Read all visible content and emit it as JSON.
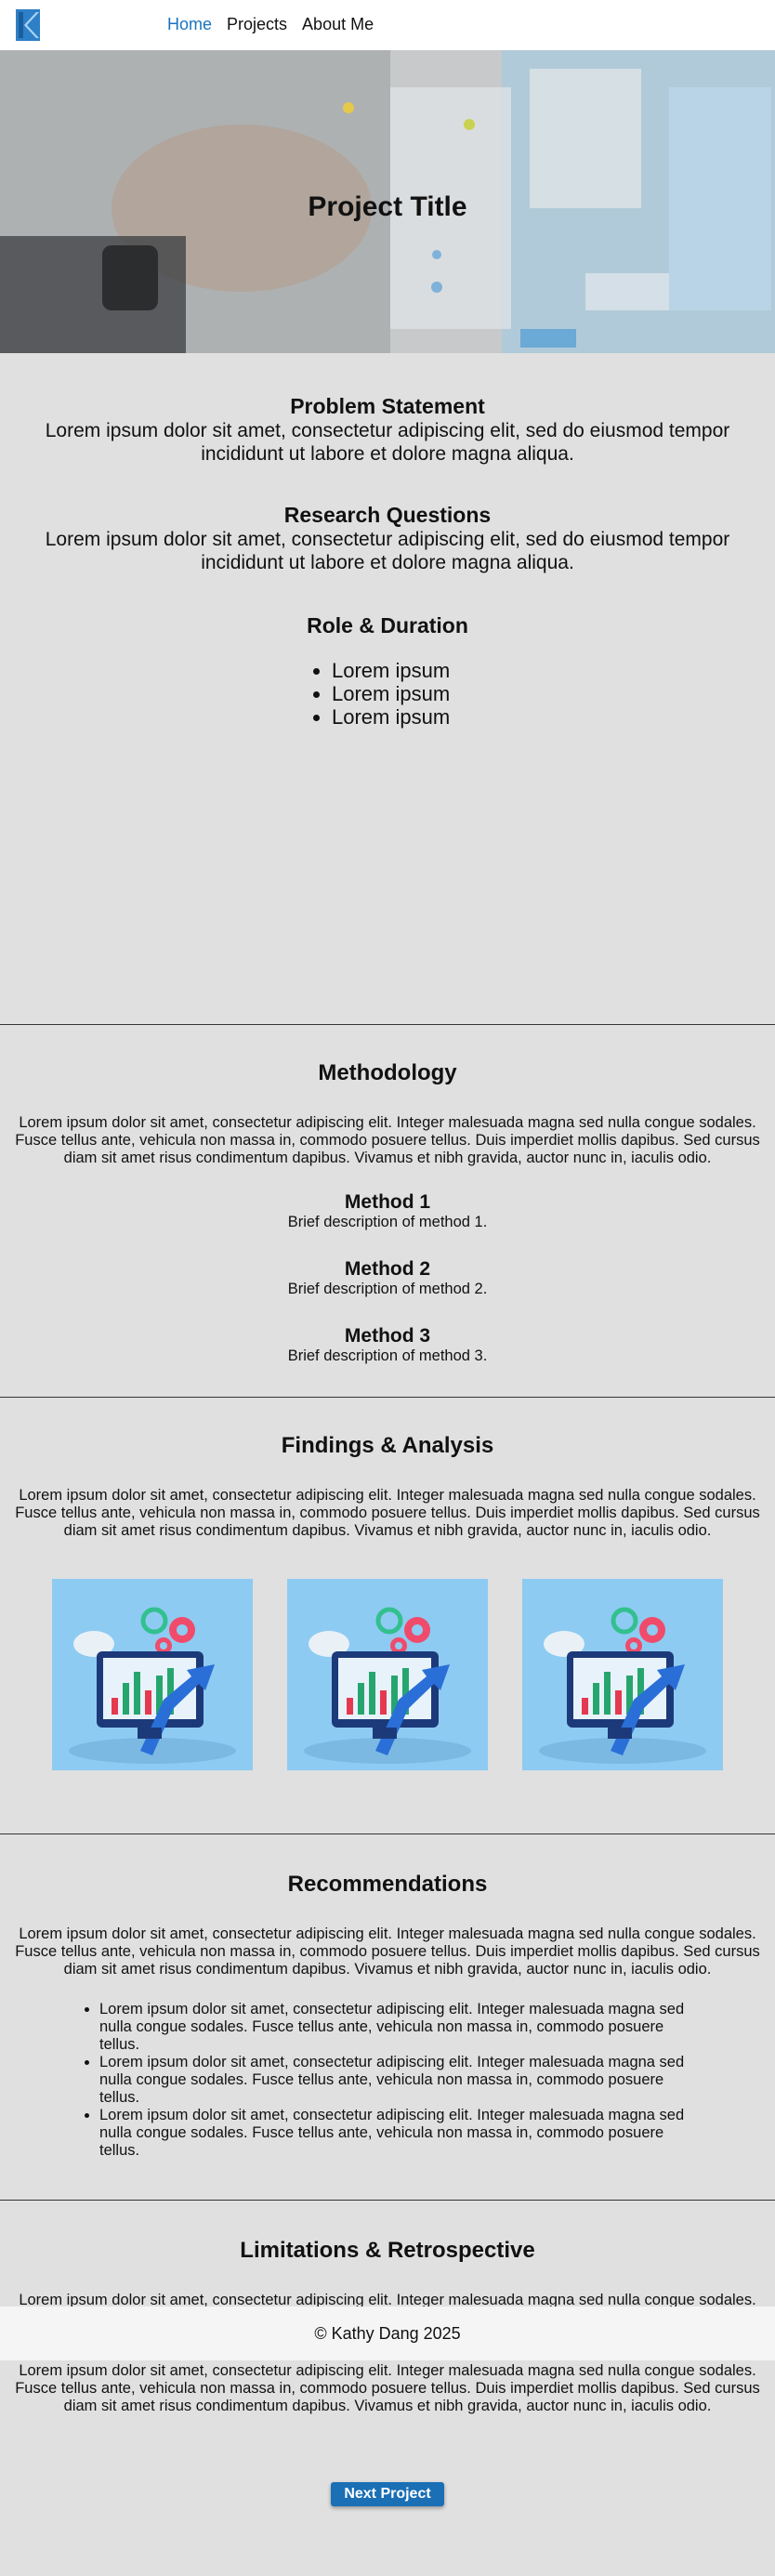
{
  "nav": {
    "logo_letter": "K",
    "items": [
      {
        "label": "Home",
        "active": true
      },
      {
        "label": "Projects",
        "active": false
      },
      {
        "label": "About Me",
        "active": false
      }
    ]
  },
  "hero": {
    "title": "Project Title"
  },
  "problem": {
    "title": "Problem Statement",
    "text": "Lorem ipsum dolor sit amet, consectetur adipiscing elit, sed do eiusmod tempor incididunt ut labore et dolore magna aliqua."
  },
  "research": {
    "title": "Research Questions",
    "text": "Lorem ipsum dolor sit amet, consectetur adipiscing elit, sed do eiusmod tempor incididunt ut labore et dolore magna aliqua."
  },
  "role": {
    "title": "Role & Duration",
    "items": [
      "Lorem ipsum",
      "Lorem ipsum",
      "Lorem ipsum"
    ]
  },
  "methodology": {
    "title": "Methodology",
    "text": "Lorem ipsum dolor sit amet, consectetur adipiscing elit. Integer malesuada magna sed nulla congue sodales. Fusce tellus ante, vehicula non massa in, commodo posuere tellus. Duis imperdiet mollis dapibus. Sed cursus diam sit amet risus condimentum dapibus. Vivamus et nibh gravida, auctor nunc in, iaculis odio.",
    "methods": [
      {
        "title": "Method 1",
        "desc": "Brief description of method 1."
      },
      {
        "title": "Method 2",
        "desc": "Brief description of method 2."
      },
      {
        "title": "Method 3",
        "desc": "Brief description of method 3."
      }
    ]
  },
  "findings": {
    "title": "Findings & Analysis",
    "text": "Lorem ipsum dolor sit amet, consectetur adipiscing elit. Integer malesuada magna sed nulla congue sodales. Fusce tellus ante, vehicula non massa in, commodo posuere tellus. Duis imperdiet mollis dapibus. Sed cursus diam sit amet risus condimentum dapibus. Vivamus et nibh gravida, auctor nunc in, iaculis odio."
  },
  "recommendations": {
    "title": "Recommendations",
    "text": "Lorem ipsum dolor sit amet, consectetur adipiscing elit. Integer malesuada magna sed nulla congue sodales. Fusce tellus ante, vehicula non massa in, commodo posuere tellus. Duis imperdiet mollis dapibus. Sed cursus diam sit amet risus condimentum dapibus. Vivamus et nibh gravida, auctor nunc in, iaculis odio.",
    "items": [
      "Lorem ipsum dolor sit amet, consectetur adipiscing elit. Integer malesuada magna sed nulla congue sodales. Fusce tellus ante, vehicula non massa in, commodo posuere tellus.",
      "Lorem ipsum dolor sit amet, consectetur adipiscing elit. Integer malesuada magna sed nulla congue sodales. Fusce tellus ante, vehicula non massa in, commodo posuere tellus.",
      "Lorem ipsum dolor sit amet, consectetur adipiscing elit. Integer malesuada magna sed nulla congue sodales. Fusce tellus ante, vehicula non massa in, commodo posuere tellus."
    ]
  },
  "limitations": {
    "title": "Limitations & Retrospective",
    "paragraphs": [
      "Lorem ipsum dolor sit amet, consectetur adipiscing elit. Integer malesuada magna sed nulla congue sodales. Fusce tellus ante, vehicula non massa in, commodo posuere tellus. Duis imperdiet mollis dapibus. Sed cursus diam sit amet risus condimentum dapibus. Vivamus et nibh gravida, auctor nunc in, iaculis odio.",
      "Lorem ipsum dolor sit amet, consectetur adipiscing elit. Integer malesuada magna sed nulla congue sodales. Fusce tellus ante, vehicula non massa in, commodo posuere tellus. Duis imperdiet mollis dapibus. Sed cursus diam sit amet risus condimentum dapibus. Vivamus et nibh gravida, auctor nunc in, iaculis odio."
    ],
    "button_label": "Next Project"
  },
  "footer": {
    "text": "© Kathy Dang 2025"
  },
  "colors": {
    "accent": "#1a73c0",
    "button": "#1a6fb5",
    "background": "#e0e0e0"
  }
}
